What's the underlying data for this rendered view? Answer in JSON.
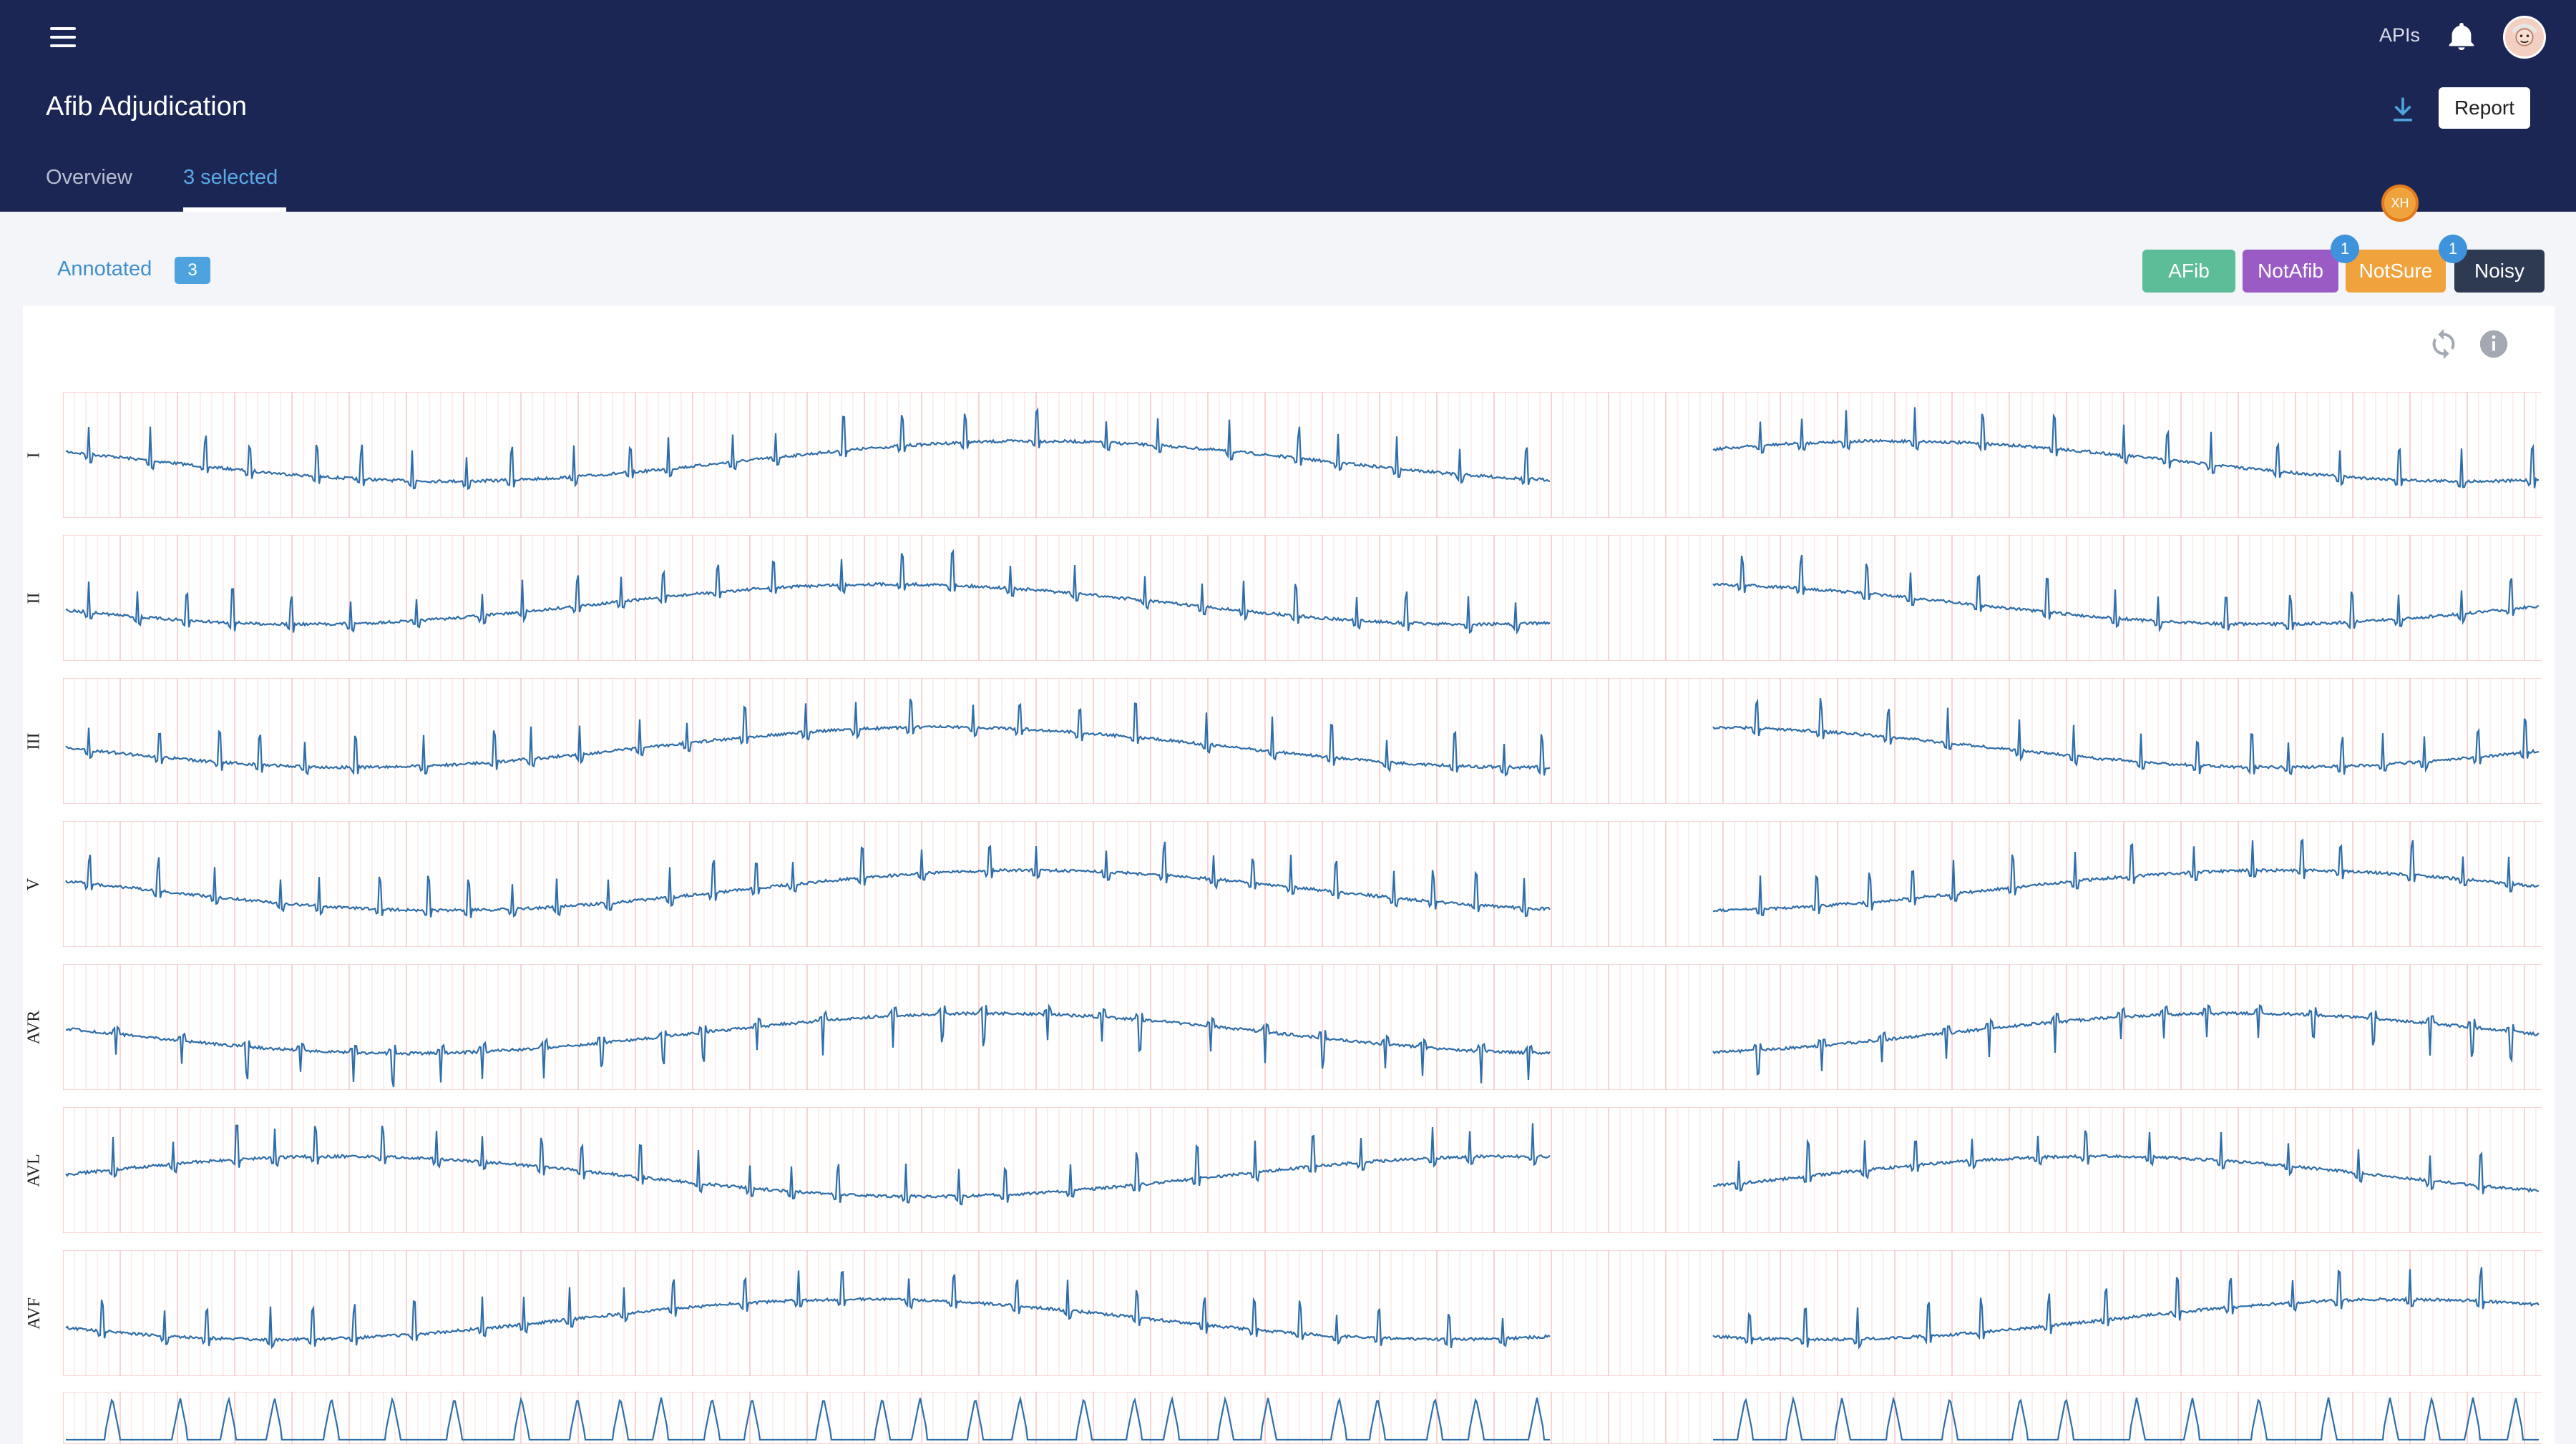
{
  "header": {
    "menu_icon": "hamburger-menu-icon",
    "apis_label": "APIs",
    "notification_icon": "bell-icon",
    "avatar_icon": "user-avatar-icon",
    "title": "Afib Adjudication",
    "download_icon": "download-icon",
    "report_label": "Report",
    "tabs": [
      {
        "label": "Overview",
        "active": false
      },
      {
        "label": "3 selected",
        "active": true
      }
    ]
  },
  "annotation": {
    "label": "Annotated",
    "count": "3"
  },
  "label_buttons": [
    {
      "label": "AFib",
      "color": "#5cbd98"
    },
    {
      "label": "NotAfib",
      "color": "#9a5cc4"
    },
    {
      "label": "NotSure",
      "color": "#f0a33d",
      "badge": "1"
    },
    {
      "label": "Noisy",
      "color": "#2e3a52",
      "badge": "1"
    }
  ],
  "annotator_initials": "XH",
  "toolbar": {
    "refresh_icon": "refresh-icon",
    "info_icon": "info-icon"
  },
  "leads": [
    "I",
    "II",
    "III",
    "V",
    "AVR",
    "AVL",
    "AVF"
  ],
  "colors": {
    "header_bg": "#1c2654",
    "trace": "#2f6ea9",
    "grid": "#f6c9c9"
  }
}
